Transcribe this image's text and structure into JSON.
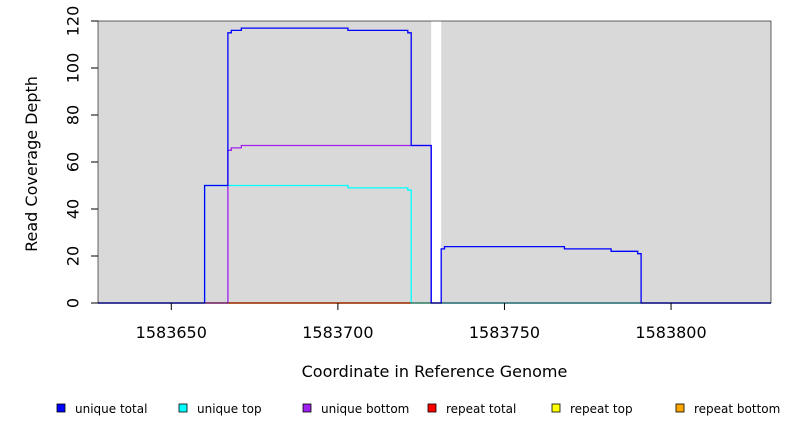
{
  "chart_data": {
    "type": "line",
    "xlabel": "Coordinate in Reference Genome",
    "ylabel": "Read Coverage Depth",
    "xlim": [
      1583628,
      1583830
    ],
    "ylim": [
      0,
      120
    ],
    "x_ticks": [
      1583650,
      1583700,
      1583750,
      1583800
    ],
    "y_ticks": [
      0,
      20,
      40,
      60,
      80,
      100,
      120
    ],
    "background_regions": [
      {
        "x": [
          1583628,
          1583728
        ],
        "color": "#d9d9d9"
      },
      {
        "x": [
          1583731,
          1583830
        ],
        "color": "#d9d9d9"
      }
    ],
    "grid": false,
    "legend_placement": "bottom",
    "series": [
      {
        "name": "unique total",
        "color": "#0000ff",
        "x": [
          1583628,
          1583660,
          1583660,
          1583667,
          1583667,
          1583668,
          1583668,
          1583671,
          1583671,
          1583703,
          1583703,
          1583721,
          1583721,
          1583722,
          1583722,
          1583728,
          1583728,
          1583731,
          1583731,
          1583732,
          1583732,
          1583768,
          1583768,
          1583782,
          1583782,
          1583790,
          1583790,
          1583791,
          1583791,
          1583830
        ],
        "y": [
          0,
          0,
          50,
          50,
          115,
          115,
          116,
          116,
          117,
          117,
          116,
          116,
          115,
          115,
          67,
          67,
          0,
          0,
          23,
          23,
          24,
          24,
          23,
          23,
          22,
          22,
          21,
          21,
          0,
          0
        ]
      },
      {
        "name": "unique top",
        "color": "#00ffff",
        "x": [
          1583628,
          1583660,
          1583660,
          1583703,
          1583703,
          1583721,
          1583721,
          1583722,
          1583722,
          1583830
        ],
        "y": [
          0,
          0,
          50,
          50,
          49,
          49,
          48,
          48,
          0,
          0
        ]
      },
      {
        "name": "unique bottom",
        "color": "#a020f0",
        "x": [
          1583628,
          1583667,
          1583667,
          1583668,
          1583668,
          1583671,
          1583671,
          1583728,
          1583728,
          1583830
        ],
        "y": [
          0,
          0,
          65,
          65,
          66,
          66,
          67,
          67,
          0,
          0
        ]
      },
      {
        "name": "repeat total",
        "color": "#ff0000",
        "x": [
          1583628,
          1583830
        ],
        "y": [
          0,
          0
        ]
      },
      {
        "name": "repeat top",
        "color": "#ffff00",
        "x": [
          1583628,
          1583830
        ],
        "y": [
          0,
          0
        ]
      },
      {
        "name": "repeat bottom",
        "color": "#ffa500",
        "x": [
          1583667,
          1583722
        ],
        "y": [
          0,
          0
        ]
      }
    ]
  }
}
